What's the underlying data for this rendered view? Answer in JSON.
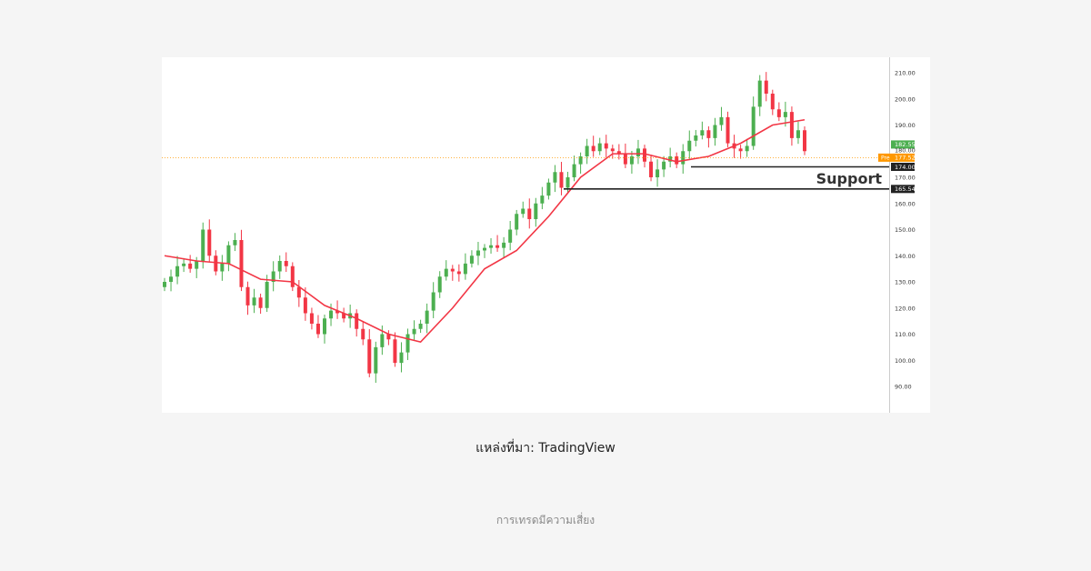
{
  "caption": "แหล่งที่มา: TradingView",
  "footer": "การเทรดมีความเสี่ยง",
  "chart_data": {
    "type": "candlestick",
    "title": "",
    "xlabel": "",
    "ylabel": "",
    "ylim": [
      88,
      214
    ],
    "y_ticks": [
      "210.00",
      "200.00",
      "190.00",
      "180.00",
      "170.00",
      "160.00",
      "150.00",
      "140.00",
      "130.00",
      "120.00",
      "110.00",
      "100.00",
      "90.00"
    ],
    "colors": {
      "up": "#4caf50",
      "down": "#f23645",
      "ma": "#f23645",
      "pre": "#ff9800",
      "support": "#222222"
    },
    "closes": [
      130,
      132,
      136,
      137,
      135,
      138,
      150,
      140,
      134,
      137,
      144,
      146,
      128,
      121,
      124,
      120,
      130,
      134,
      138,
      136,
      128,
      124,
      118,
      114,
      110,
      116,
      119,
      118,
      116,
      118,
      112,
      108,
      95,
      105,
      110,
      108,
      99,
      103,
      110,
      112,
      114,
      119,
      126,
      132,
      135,
      134,
      133,
      137,
      140,
      142,
      143,
      144,
      143,
      145,
      150,
      156,
      158,
      154,
      160,
      163,
      168,
      172,
      166,
      170,
      175,
      178,
      182,
      180,
      183,
      181,
      180,
      179,
      175,
      178,
      181,
      176,
      170,
      173,
      176,
      178,
      175,
      180,
      184,
      186,
      188,
      185,
      190,
      193,
      183,
      181,
      180,
      182,
      197,
      207,
      202,
      196,
      193,
      195,
      185,
      188,
      180
    ],
    "moving_average": [
      140,
      138,
      137,
      131,
      130,
      121,
      116,
      110,
      107,
      120,
      135,
      142,
      155,
      170,
      179,
      179,
      176,
      178,
      183,
      190,
      192
    ],
    "price_labels": {
      "last": "182.55",
      "tick_180": "180.00",
      "pre_label": "Pre",
      "pre_value": "177.52",
      "support_upper": "174.00",
      "support_lower": "165.54"
    },
    "levels": {
      "pre": 177.52,
      "support_upper": 174.0,
      "support_lower": 165.54,
      "last": 182.55
    },
    "annotation": "Support"
  }
}
